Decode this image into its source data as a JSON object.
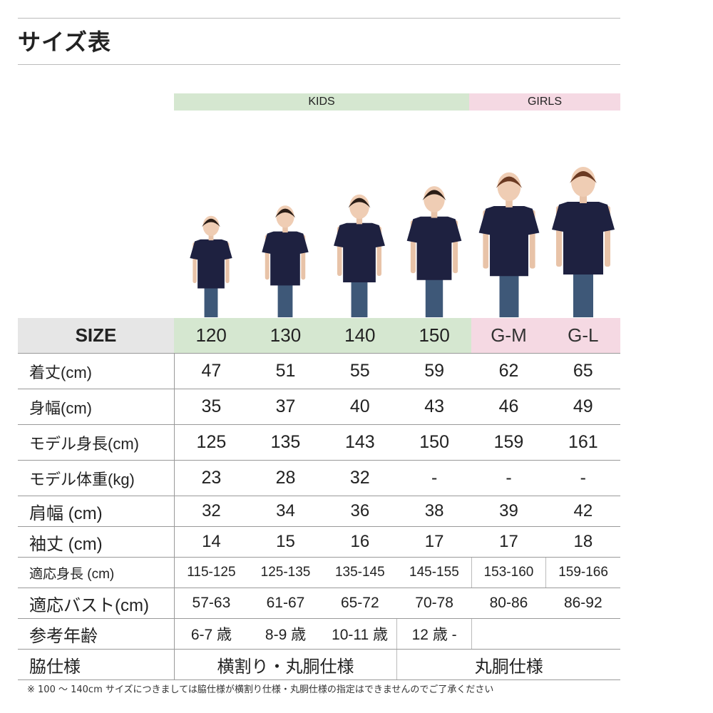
{
  "title": "サイズ表",
  "groups": {
    "kids": "KIDS",
    "girls": "GIRLS"
  },
  "header": {
    "label": "SIZE",
    "sizes": [
      "120",
      "130",
      "140",
      "150",
      "G-M",
      "G-L"
    ]
  },
  "rows": [
    {
      "label": "着丈(cm)",
      "values": [
        "47",
        "51",
        "55",
        "59",
        "62",
        "65"
      ]
    },
    {
      "label": "身幅(cm)",
      "values": [
        "35",
        "37",
        "40",
        "43",
        "46",
        "49"
      ]
    },
    {
      "label": "モデル身長(cm)",
      "values": [
        "125",
        "135",
        "143",
        "150",
        "159",
        "161"
      ]
    },
    {
      "label": "モデル体重(kg)",
      "values": [
        "23",
        "28",
        "32",
        "-",
        "-",
        "-"
      ]
    },
    {
      "label": "肩幅 (cm)",
      "values": [
        "32",
        "34",
        "36",
        "38",
        "39",
        "42"
      ]
    },
    {
      "label": "袖丈 (cm)",
      "values": [
        "14",
        "15",
        "16",
        "17",
        "17",
        "18"
      ]
    },
    {
      "label": "適応身長 (cm)",
      "values": [
        "115-125",
        "125-135",
        "135-145",
        "145-155",
        "153-160",
        "159-166"
      ]
    },
    {
      "label": "適応バスト(cm)",
      "values": [
        "57-63",
        "61-67",
        "65-72",
        "70-78",
        "80-86",
        "86-92"
      ]
    },
    {
      "label": "参考年齢",
      "values": [
        "6-7 歳",
        "8-9 歳",
        "10-11 歳",
        "12 歳 -"
      ]
    },
    {
      "label": "脇仕様",
      "values": [
        "横割り・丸胴仕様",
        "丸胴仕様"
      ]
    }
  ],
  "footnote": "※ 100 ～ 140cm サイズにつきましては脇仕様が横割り仕様・丸胴仕様の指定はできませんのでご了承ください",
  "colors": {
    "kids": "#d5e7d0",
    "girls": "#f5d9e3",
    "shirt": "#1e2140"
  }
}
